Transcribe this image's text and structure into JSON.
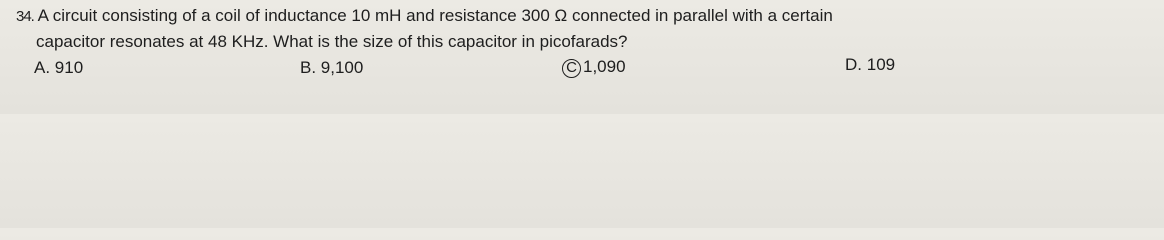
{
  "question": {
    "number": "34.",
    "lines": [
      "A circuit consisting of a coil of inductance 10 mH and resistance 300 Ω connected in parallel with a certain",
      "capacitor resonates at 48 KHz. What is the size of this capacitor in picofarads?"
    ]
  },
  "options": [
    {
      "letter": "A.",
      "text": "910"
    },
    {
      "letter": "B.",
      "text": "9,100"
    },
    {
      "letter": "C",
      "text": "1,090"
    },
    {
      "letter": "D.",
      "text": "109"
    }
  ]
}
